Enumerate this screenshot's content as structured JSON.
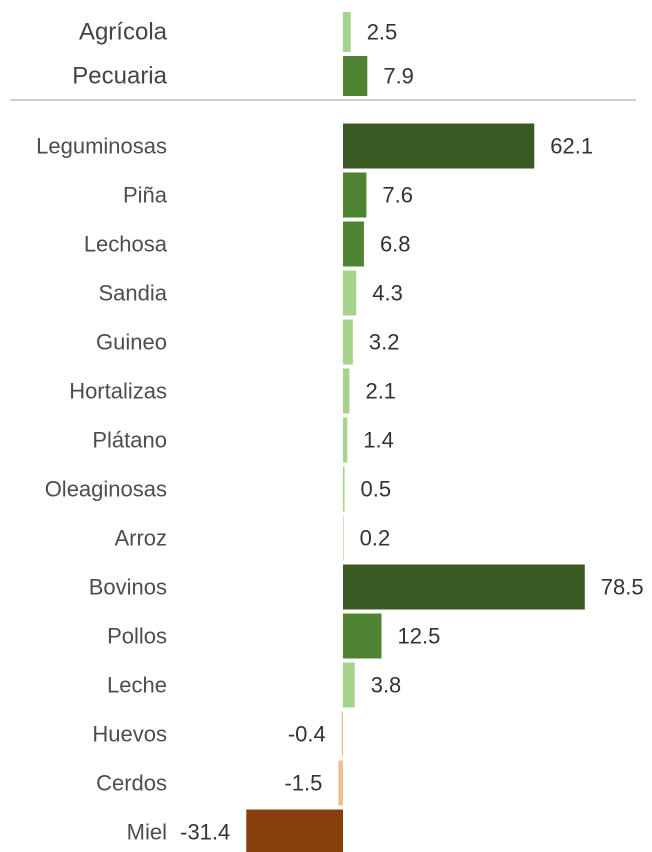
{
  "chart_data": {
    "type": "bar",
    "orientation": "horizontal",
    "grid": false,
    "legend": "none",
    "summary": {
      "categories": [
        "Agrícola",
        "Pecuaria"
      ],
      "values": [
        2.5,
        7.9
      ],
      "value_labels": [
        "2.5",
        "7.9"
      ]
    },
    "detail": {
      "categories": [
        "Leguminosas",
        "Piña",
        "Lechosa",
        "Sandia",
        "Guineo",
        "Hortalizas",
        "Plátano",
        "Oleaginosas",
        "Arroz",
        "Bovinos",
        "Pollos",
        "Leche",
        "Huevos",
        "Cerdos",
        "Miel"
      ],
      "values": [
        62.1,
        7.6,
        6.8,
        4.3,
        3.2,
        2.1,
        1.4,
        0.5,
        0.2,
        78.5,
        12.5,
        3.8,
        -0.4,
        -1.5,
        -31.4
      ],
      "value_labels": [
        "62.1",
        "7.6",
        "6.8",
        "4.3",
        "3.2",
        "2.1",
        "1.4",
        "0.5",
        "0.2",
        "78.5",
        "12.5",
        "3.8",
        "-0.4",
        "-1.5",
        "-31.4"
      ]
    },
    "colors": {
      "high": "#3b5a23",
      "medium": "#4e8431",
      "low": "#a6d38c",
      "negative_small": "#efbf93",
      "negative_large": "#87400d",
      "separator": "#bfbfbf"
    }
  }
}
